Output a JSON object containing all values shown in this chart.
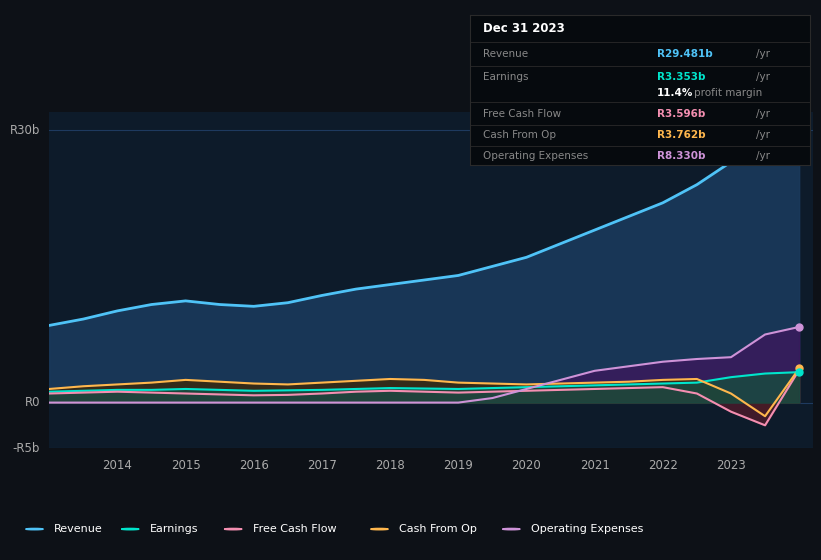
{
  "bg_color": "#0d1117",
  "plot_bg_color": "#0d1b2a",
  "ylabel_top": "R30b",
  "ylabel_zero": "R0",
  "ylabel_neg": "-R5b",
  "years": [
    2013.0,
    2013.5,
    2014.0,
    2014.5,
    2015.0,
    2015.5,
    2016.0,
    2016.5,
    2017.0,
    2017.5,
    2018.0,
    2018.5,
    2019.0,
    2019.5,
    2020.0,
    2020.5,
    2021.0,
    2021.5,
    2022.0,
    2022.5,
    2023.0,
    2023.5,
    2024.0
  ],
  "revenue": [
    8.5,
    9.2,
    10.1,
    10.8,
    11.2,
    10.8,
    10.6,
    11.0,
    11.8,
    12.5,
    13.0,
    13.5,
    14.0,
    15.0,
    16.0,
    17.5,
    19.0,
    20.5,
    22.0,
    24.0,
    26.5,
    29.0,
    29.481
  ],
  "earnings": [
    1.2,
    1.3,
    1.4,
    1.4,
    1.5,
    1.4,
    1.3,
    1.35,
    1.4,
    1.5,
    1.6,
    1.55,
    1.5,
    1.6,
    1.7,
    1.8,
    1.9,
    2.0,
    2.1,
    2.2,
    2.8,
    3.2,
    3.353
  ],
  "free_cash_flow": [
    1.0,
    1.1,
    1.2,
    1.1,
    1.0,
    0.9,
    0.8,
    0.85,
    1.0,
    1.2,
    1.3,
    1.2,
    1.1,
    1.2,
    1.3,
    1.4,
    1.5,
    1.6,
    1.7,
    1.0,
    -1.0,
    -2.5,
    3.596
  ],
  "cash_from_op": [
    1.5,
    1.8,
    2.0,
    2.2,
    2.5,
    2.3,
    2.1,
    2.0,
    2.2,
    2.4,
    2.6,
    2.5,
    2.2,
    2.1,
    2.0,
    2.1,
    2.2,
    2.3,
    2.5,
    2.6,
    1.0,
    -1.5,
    3.762
  ],
  "operating_expenses": [
    0.0,
    0.0,
    0.0,
    0.0,
    0.0,
    0.0,
    0.0,
    0.0,
    0.0,
    0.0,
    0.0,
    0.0,
    0.0,
    0.5,
    1.5,
    2.5,
    3.5,
    4.0,
    4.5,
    4.8,
    5.0,
    7.5,
    8.33
  ],
  "revenue_color": "#4fc3f7",
  "earnings_color": "#00e5cc",
  "free_cash_flow_color": "#f48fb1",
  "cash_from_op_color": "#ffb74d",
  "operating_expenses_color": "#ce93d8",
  "revenue_fill_color": "#1a3a5c",
  "earnings_fill_color": "#1a4a40",
  "free_cash_flow_fill_color": "#4a1a2a",
  "cash_from_op_fill_color": "#3a2a10",
  "operating_expenses_fill_color": "#3a1a5c",
  "info_revenue_color": "#4fc3f7",
  "info_earnings_color": "#00e5cc",
  "info_fcf_color": "#f48fb1",
  "info_cashop_color": "#ffb74d",
  "info_opex_color": "#ce93d8",
  "grid_color": "#1e3a5f",
  "xtick_labels": [
    "2014",
    "2015",
    "2016",
    "2017",
    "2018",
    "2019",
    "2020",
    "2021",
    "2022",
    "2023"
  ],
  "xtick_positions": [
    2014,
    2015,
    2016,
    2017,
    2018,
    2019,
    2020,
    2021,
    2022,
    2023
  ],
  "ylim": [
    -5,
    32
  ],
  "xlim_start": 2013.0,
  "xlim_end": 2024.2,
  "tooltip_title": "Dec 31 2023",
  "tooltip_rows": [
    {
      "label": "Revenue",
      "value": "R29.481b",
      "suffix": " /yr",
      "value_color": "#4fc3f7",
      "margin_text": null
    },
    {
      "label": "Earnings",
      "value": "R3.353b",
      "suffix": " /yr",
      "value_color": "#00e5cc",
      "margin_text": "11.4% profit margin"
    },
    {
      "label": "Free Cash Flow",
      "value": "R3.596b",
      "suffix": " /yr",
      "value_color": "#f48fb1",
      "margin_text": null
    },
    {
      "label": "Cash From Op",
      "value": "R3.762b",
      "suffix": " /yr",
      "value_color": "#ffb74d",
      "margin_text": null
    },
    {
      "label": "Operating Expenses",
      "value": "R8.330b",
      "suffix": " /yr",
      "value_color": "#ce93d8",
      "margin_text": null
    }
  ],
  "legend_items": [
    {
      "label": "Revenue",
      "color": "#4fc3f7"
    },
    {
      "label": "Earnings",
      "color": "#00e5cc"
    },
    {
      "label": "Free Cash Flow",
      "color": "#f48fb1"
    },
    {
      "label": "Cash From Op",
      "color": "#ffb74d"
    },
    {
      "label": "Operating Expenses",
      "color": "#ce93d8"
    }
  ]
}
